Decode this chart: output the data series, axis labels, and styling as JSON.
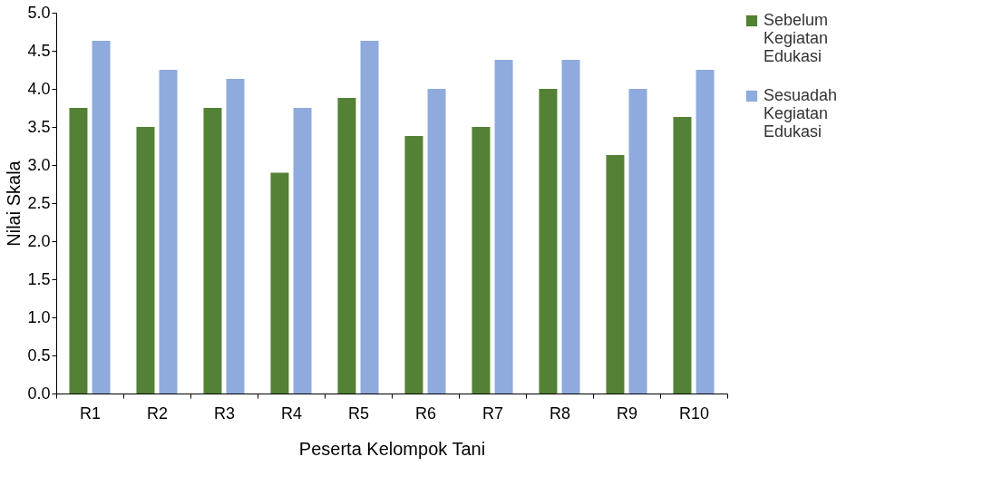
{
  "chart_data": {
    "type": "bar",
    "xlabel": "Peserta Kelompok Tani",
    "ylabel": "Nilai Skala",
    "categories": [
      "R1",
      "R2",
      "R3",
      "R4",
      "R5",
      "R6",
      "R7",
      "R8",
      "R9",
      "R10"
    ],
    "series": [
      {
        "name": "Sebelum Kegiatan Edukasi",
        "color": "#538135",
        "values": [
          3.75,
          3.5,
          3.75,
          2.9,
          3.88,
          3.38,
          3.5,
          4.0,
          3.13,
          3.63
        ]
      },
      {
        "name": "Sesuadah Kegiatan Edukasi",
        "color": "#8faadc",
        "values": [
          4.63,
          4.25,
          4.13,
          3.75,
          4.63,
          4.0,
          4.38,
          4.38,
          4.0,
          4.25
        ]
      }
    ],
    "ylim": [
      0,
      5
    ],
    "yticks": [
      {
        "value": 0,
        "label": "0.0"
      },
      0.5,
      {
        "value": 1,
        "label": "1.0"
      },
      1.5,
      {
        "value": 2,
        "label": "2.0"
      },
      2.5,
      {
        "value": 3,
        "label": "3.0"
      },
      3.5,
      {
        "value": 4,
        "label": "4.0"
      },
      4.5,
      {
        "value": 5,
        "label": "5.0"
      }
    ],
    "grid": false,
    "legend": "right"
  }
}
